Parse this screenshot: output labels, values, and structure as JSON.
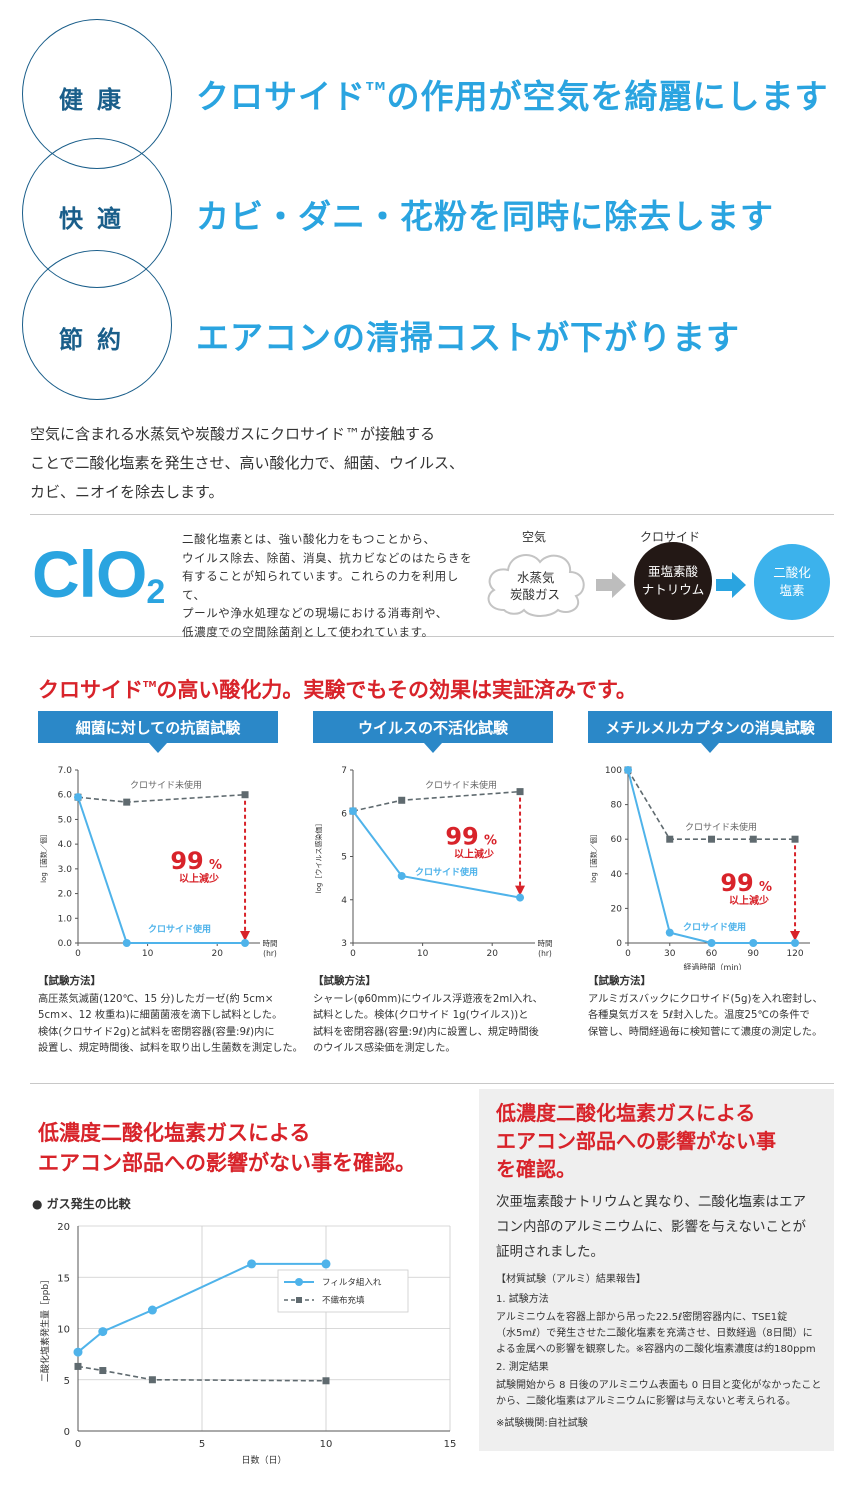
{
  "hero": [
    {
      "label": "健康",
      "headline_pre": "クロサイド",
      "headline_tm": "TM",
      "headline_post": "の作用が空気を綺麗にします"
    },
    {
      "label": "快適",
      "headline_pre": "カビ・ダニ・花粉を同時に除去します",
      "headline_tm": "",
      "headline_post": ""
    },
    {
      "label": "節約",
      "headline_pre": "エアコンの清掃コストが下がります",
      "headline_tm": "",
      "headline_post": ""
    }
  ],
  "intro": {
    "line1": "空気に含まれる水蒸気や炭酸ガスにクロサイド™が接触する",
    "line2": "ことで二酸化塩素を発生させ、高い酸化力で、細菌、ウイルス、",
    "line3": "カビ、ニオイを除去します。"
  },
  "clo2": {
    "formula_main": "ClO",
    "formula_sub": "2",
    "desc1": "二酸化塩素とは、強い酸化力をもつことから、",
    "desc2": "ウイルス除去、除菌、消臭、抗カビなどのはたらきを",
    "desc3": "有することが知られています。これらの力を利用して、",
    "desc4": "プールや浄水処理などの現場における消毒剤や、",
    "desc5": "低濃度での空間除菌剤として使われています。",
    "flow": {
      "air_label": "空気",
      "air_line1": "水蒸気",
      "air_line2": "炭酸ガス",
      "chloride_label": "クロサイド",
      "chloride_line1": "亜塩素酸",
      "chloride_line2": "ナトリウム",
      "result_line1": "二酸化",
      "result_line2": "塩素"
    }
  },
  "tests": {
    "heading_pre": "クロサイド",
    "heading_tm": "TM",
    "heading_post": "の高い酸化力。実験でもその効果は実証済みです。",
    "colors": {
      "blue": "#4fb3ea",
      "gray": "#5f6a6f",
      "red": "#d8232a",
      "banner": "#2b88c8"
    },
    "method_title": "【試験方法】",
    "panels": [
      {
        "banner": "細菌に対しての抗菌試験",
        "method1": "高圧蒸気滅菌(120℃、15 分)したガーゼ(約 5cm×",
        "method2": "5cm×、12 枚重ね)に細菌菌液を滴下し試料とした。",
        "method3": "検体(クロサイド2g)と試料を密閉容器(容量:9ℓ)内に",
        "method4": "設置し、規定時間後、試料を取り出し生菌数を測定した。"
      },
      {
        "banner": "ウイルスの不活化試験",
        "method1": "シャーレ(φ60mm)にウイルス浮遊液を2ml入れ、",
        "method2": "試料とした。検体(クロサイド 1g(ウイルス))と",
        "method3": "試料を密閉容器(容量:9ℓ)内に設置し、規定時間後",
        "method4": "のウイルス感染価を測定した。"
      },
      {
        "banner": "メチルメルカプタンの消臭試験",
        "method1": "アルミガスバックにクロサイド(5g)を入れ密封し、",
        "method2": "各種臭気ガスを 5ℓ封入した。温度25℃の条件で",
        "method3": "保管し、時間経過毎に検知菅にて濃度の測定した。",
        "method4": ""
      }
    ]
  },
  "chart_data": [
    {
      "type": "line",
      "title": "細菌に対しての抗菌試験",
      "xlabel": "時間(hr)",
      "ylabel": "log［菌数／個］",
      "xlim": [
        0,
        25
      ],
      "ylim": [
        0,
        7
      ],
      "xticks": [
        "0",
        "10",
        "20"
      ],
      "yticks": [
        "0.0",
        "1.0",
        "2.0",
        "3.0",
        "4.0",
        "5.0",
        "6.0",
        "7.0"
      ],
      "annotation_big": "99",
      "annotation_pct": "%",
      "annotation_small": "以上減少",
      "series": [
        {
          "name": "クロサイド未使用",
          "x": [
            0,
            7,
            24
          ],
          "y": [
            5.9,
            5.7,
            6.0
          ]
        },
        {
          "name": "クロサイド使用",
          "x": [
            0,
            7,
            24
          ],
          "y": [
            5.9,
            0.0,
            0.0
          ]
        }
      ]
    },
    {
      "type": "line",
      "title": "ウイルスの不活化試験",
      "xlabel": "時間(hr)",
      "ylabel": "log［ウイルス感染価］",
      "xlim": [
        0,
        25
      ],
      "ylim": [
        3,
        7
      ],
      "xticks": [
        "0",
        "10",
        "20"
      ],
      "yticks": [
        "3",
        "4",
        "5",
        "6",
        "7"
      ],
      "annotation_big": "99",
      "annotation_pct": "%",
      "annotation_small": "以上減少",
      "series": [
        {
          "name": "クロサイド未使用",
          "x": [
            0,
            7,
            24
          ],
          "y": [
            6.05,
            6.3,
            6.5
          ]
        },
        {
          "name": "クロサイド使用",
          "x": [
            0,
            7,
            24
          ],
          "y": [
            6.05,
            4.55,
            4.05
          ]
        }
      ]
    },
    {
      "type": "line",
      "title": "メチルメルカプタンの消臭試験",
      "xlabel": "経過時間（min）",
      "ylabel": "log［菌数／個］",
      "xlim": [
        0,
        125
      ],
      "ylim": [
        0,
        100
      ],
      "xticks": [
        "0",
        "30",
        "60",
        "90",
        "120"
      ],
      "yticks": [
        "0",
        "20",
        "40",
        "60",
        "80",
        "100"
      ],
      "annotation_big": "99",
      "annotation_pct": "%",
      "annotation_small": "以上減少",
      "series": [
        {
          "name": "クロサイド未使用",
          "x": [
            0,
            30,
            60,
            90,
            120
          ],
          "y": [
            100,
            60,
            60,
            60,
            60
          ]
        },
        {
          "name": "クロサイド使用",
          "x": [
            0,
            30,
            60,
            90,
            120
          ],
          "y": [
            100,
            6,
            0,
            0,
            0
          ]
        }
      ]
    },
    {
      "type": "line",
      "title": "● ガス発生の比較",
      "xlabel": "日数（日）",
      "ylabel": "二酸化塩素発生量［ppb］",
      "xlim": [
        0,
        15
      ],
      "ylim": [
        0,
        20
      ],
      "xticks": [
        "0",
        "5",
        "10",
        "15"
      ],
      "yticks": [
        "0",
        "5",
        "10",
        "15",
        "20"
      ],
      "series": [
        {
          "name": "フィルタ組入れ",
          "x": [
            0,
            1,
            3,
            7,
            10
          ],
          "y": [
            7.7,
            9.7,
            11.8,
            16.3,
            16.3
          ]
        },
        {
          "name": "不織布充填",
          "x": [
            0,
            1,
            3,
            10
          ],
          "y": [
            6.3,
            5.9,
            5.0,
            4.9
          ]
        }
      ]
    }
  ],
  "bottom": {
    "heading_left1": "低濃度二酸化塩素ガスによる",
    "heading_left2": "エアコン部品への影響がない事を確認。",
    "heading_right1": "低濃度二酸化塩素ガスによる",
    "heading_right2": "エアコン部品への影響がない事",
    "heading_right3": "を確認。",
    "body1": "次亜塩素酸ナトリウムと異なり、二酸化塩素はエア",
    "body2": "コン内部のアルミニウムに、影響を与えないことが",
    "body3": "証明されました。",
    "report_title": "【材質試験（アルミ）結果報告】",
    "item1_title": "1. 試験方法",
    "item1_l1": "アルミニウムを容器上部から吊った22.5ℓ密閉容器内に、TSE1錠",
    "item1_l2": "（水5mℓ）で発生させた二酸化塩素を充満させ、日数経過（8日間）に",
    "item1_l3": "よる金属への影響を観察した。※容器内の二酸化塩素濃度は約180ppm",
    "item2_title": "2. 測定結果",
    "item2_l1": "試験開始から 8 日後のアルミニウム表面も 0 日目と変化がなかったこと",
    "item2_l2": "から、二酸化塩素はアルミニウムに影響は与えないと考えられる。",
    "note": "※試験機関:自社試験"
  }
}
